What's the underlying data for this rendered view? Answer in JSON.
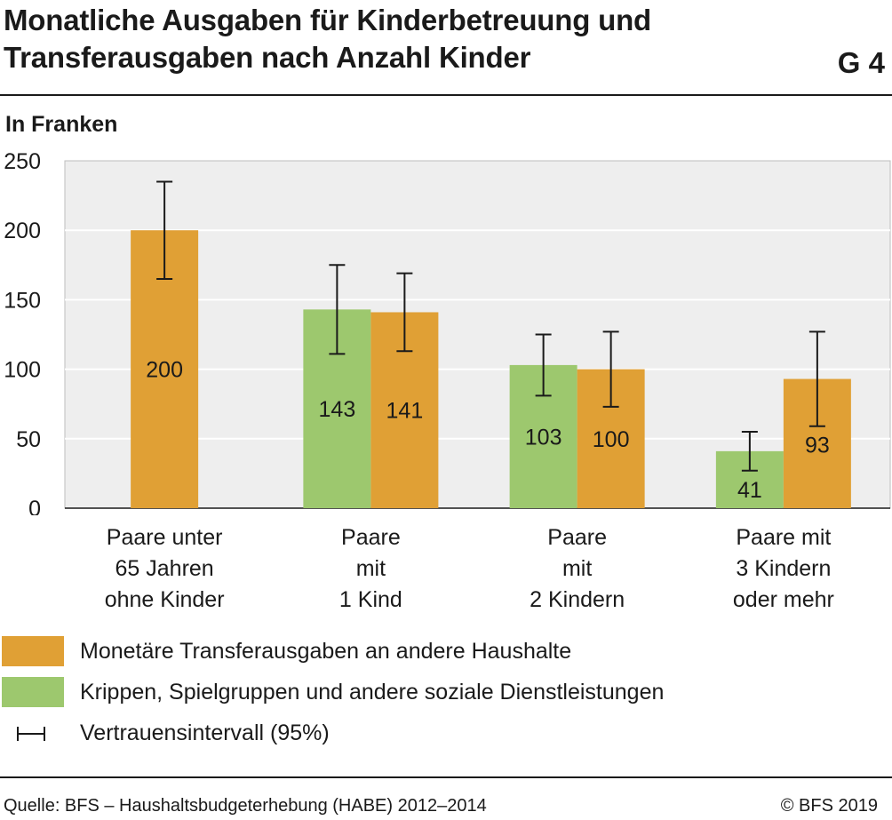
{
  "header": {
    "title_line1": "Monatliche Ausgaben für Kinderbetreuung und",
    "title_line2": "Transferausgaben nach Anzahl Kinder",
    "graphic_number": "G 4",
    "unit_label": "In Franken"
  },
  "chart_data": {
    "type": "bar",
    "title": "Monatliche Ausgaben für Kinderbetreuung und Transferausgaben nach Anzahl Kinder",
    "ylabel": "In Franken",
    "ylim": [
      0,
      250
    ],
    "yticks": [
      0,
      50,
      100,
      150,
      200,
      250
    ],
    "grid": true,
    "categories": [
      [
        "Paare unter",
        "65 Jahren",
        "ohne Kinder"
      ],
      [
        "Paare",
        "mit",
        "1 Kind"
      ],
      [
        "Paare",
        "mit",
        "2 Kindern"
      ],
      [
        "Paare mit",
        "3 Kindern",
        "oder mehr"
      ]
    ],
    "series": [
      {
        "name": "Krippen, Spielgruppen und andere soziale Dienstleistungen",
        "color": "#9dc86e",
        "values": [
          null,
          143,
          103,
          41
        ],
        "ci_low": [
          null,
          111,
          81,
          27
        ],
        "ci_high": [
          null,
          175,
          125,
          55
        ]
      },
      {
        "name": "Monetäre Transferausgaben an andere Haushalte",
        "color": "#e0a035",
        "values": [
          200,
          141,
          100,
          93
        ],
        "ci_low": [
          165,
          113,
          73,
          59
        ],
        "ci_high": [
          235,
          169,
          127,
          127
        ]
      }
    ],
    "legend": [
      {
        "label": "Monetäre Transferausgaben an andere Haushalte",
        "color": "#e0a035",
        "kind": "swatch"
      },
      {
        "label": "Krippen, Spielgruppen und andere soziale Dienstleistungen",
        "color": "#9dc86e",
        "kind": "swatch"
      },
      {
        "label": "Vertrauensintervall (95%)",
        "kind": "errorbar"
      }
    ],
    "legend_position": "bottom",
    "plot_background": "#eeeeee"
  },
  "footer": {
    "source": "Quelle: BFS – Haushaltsbudgeterhebung (HABE) 2012–2014",
    "copyright": "© BFS 2019"
  }
}
